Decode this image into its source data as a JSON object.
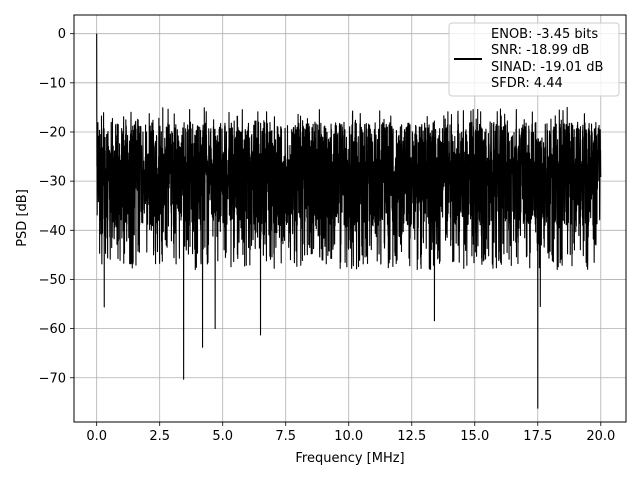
{
  "chart_data": {
    "type": "line",
    "xlabel": "Frequency [MHz]",
    "ylabel": "PSD [dB]",
    "xlim": [
      -0.9,
      21.0
    ],
    "ylim": [
      -79.0,
      3.8
    ],
    "x_ticks": [
      0.0,
      2.5,
      5.0,
      7.5,
      10.0,
      12.5,
      15.0,
      17.5,
      20.0
    ],
    "x_tick_labels": [
      "0.0",
      "2.5",
      "5.0",
      "7.5",
      "10.0",
      "12.5",
      "15.0",
      "17.5",
      "20.0"
    ],
    "y_ticks": [
      0,
      -10,
      -20,
      -30,
      -40,
      -50,
      -60,
      -70
    ],
    "y_tick_labels": [
      "0",
      "−10",
      "−20",
      "−30",
      "−40",
      "−50",
      "−60",
      "−70"
    ],
    "grid": true,
    "legend_position": "top-right",
    "legend": {
      "lines": [
        "ENOB: -3.45 bits",
        "SNR: -18.99 dB",
        "SINAD: -19.01 dB",
        "SFDR: 4.44"
      ]
    },
    "series": [
      {
        "color": "#000000",
        "description_points": {
          "x_range": [
            0.0,
            20.0
          ],
          "peak": {
            "x": 0.0,
            "y": 0.0
          },
          "noise_band": [
            -48,
            -15
          ],
          "deep_dips": [
            {
              "x": 0.3,
              "y": -55.6
            },
            {
              "x": 3.45,
              "y": -70.3
            },
            {
              "x": 4.2,
              "y": -63.8
            },
            {
              "x": 4.7,
              "y": -60.0
            },
            {
              "x": 6.5,
              "y": -61.3
            },
            {
              "x": 13.4,
              "y": -58.4
            },
            {
              "x": 17.5,
              "y": -76.2
            },
            {
              "x": 17.6,
              "y": -55.5
            }
          ]
        }
      }
    ]
  }
}
